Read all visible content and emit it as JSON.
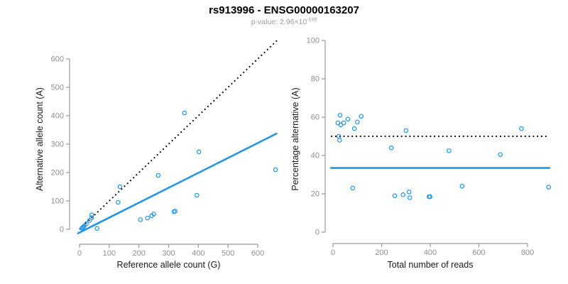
{
  "header": {
    "title": "rs913996 - ENSG00000163207",
    "pvalue_prefix": "p-value: 2.96×10",
    "pvalue_exponent": "-148"
  },
  "colors": {
    "point": "#2297E6",
    "solid_line": "#2297E6",
    "dotted_line": "#000000",
    "axis": "#9a9a9a",
    "tick_label": "#8f8f8f",
    "axis_title": "#1a1a1a",
    "subtitle": "#9b9b9b"
  },
  "chart_data": [
    {
      "type": "scatter",
      "name": "allele-counts-scatter",
      "xlabel": "Reference allele count (G)",
      "ylabel": "Alternative allele count (A)",
      "xticks": [
        0,
        100,
        200,
        300,
        400,
        500,
        600
      ],
      "yticks": [
        0,
        100,
        200,
        300,
        400,
        500,
        600
      ],
      "xlim": [
        -25,
        690
      ],
      "ylim": [
        -55,
        675
      ],
      "grid": false,
      "legend": "none",
      "points": [
        [
          8,
          4
        ],
        [
          11,
          6
        ],
        [
          13,
          9
        ],
        [
          16,
          12
        ],
        [
          23,
          20
        ],
        [
          33,
          31
        ],
        [
          41,
          41
        ],
        [
          41,
          51
        ],
        [
          59,
          3
        ],
        [
          130,
          95
        ],
        [
          136,
          150
        ],
        [
          205,
          34
        ],
        [
          229,
          40
        ],
        [
          243,
          48
        ],
        [
          250,
          54
        ],
        [
          265,
          190
        ],
        [
          318,
          62
        ],
        [
          322,
          64
        ],
        [
          353,
          410
        ],
        [
          395,
          120
        ],
        [
          402,
          273
        ],
        [
          660,
          210
        ]
      ],
      "lines": [
        {
          "name": "identity-line",
          "style": "dotted",
          "color": "#000000",
          "x1": 0,
          "y1": 0,
          "x2": 670,
          "y2": 670
        },
        {
          "name": "regression-line",
          "style": "solid",
          "color": "#2297E6",
          "x1": -5,
          "y1": -14,
          "x2": 663,
          "y2": 337
        }
      ]
    },
    {
      "type": "scatter",
      "name": "percentage-alternative-scatter",
      "xlabel": "Total number of reads",
      "ylabel": "Percentage alternative (A)",
      "xticks": [
        0,
        200,
        400,
        600,
        800
      ],
      "yticks": [
        0,
        20,
        40,
        60,
        80,
        100
      ],
      "xlim": [
        -30,
        900
      ],
      "ylim": [
        0,
        100
      ],
      "grid": false,
      "legend": "none",
      "points": [
        [
          20,
          57
        ],
        [
          24,
          50
        ],
        [
          27,
          48
        ],
        [
          29,
          61
        ],
        [
          32,
          56
        ],
        [
          44,
          57
        ],
        [
          61,
          59
        ],
        [
          81,
          23
        ],
        [
          88,
          54
        ],
        [
          100,
          57.5
        ],
        [
          116,
          60.5
        ],
        [
          240,
          44
        ],
        [
          254,
          19
        ],
        [
          288,
          19.5
        ],
        [
          300,
          53
        ],
        [
          313,
          21
        ],
        [
          316,
          18
        ],
        [
          395,
          18.5
        ],
        [
          399,
          18.5
        ],
        [
          477,
          42.5
        ],
        [
          531,
          24
        ],
        [
          688,
          40.5
        ],
        [
          775,
          54
        ],
        [
          887,
          23.5
        ]
      ],
      "lines": [
        {
          "name": "fifty-percent-line",
          "style": "dotted",
          "color": "#000000",
          "x1": -8,
          "y1": 50,
          "x2": 885,
          "y2": 50
        },
        {
          "name": "mean-percentage-line",
          "style": "solid",
          "color": "#2297E6",
          "x1": -8,
          "y1": 33.5,
          "x2": 890,
          "y2": 33.5
        }
      ]
    }
  ]
}
